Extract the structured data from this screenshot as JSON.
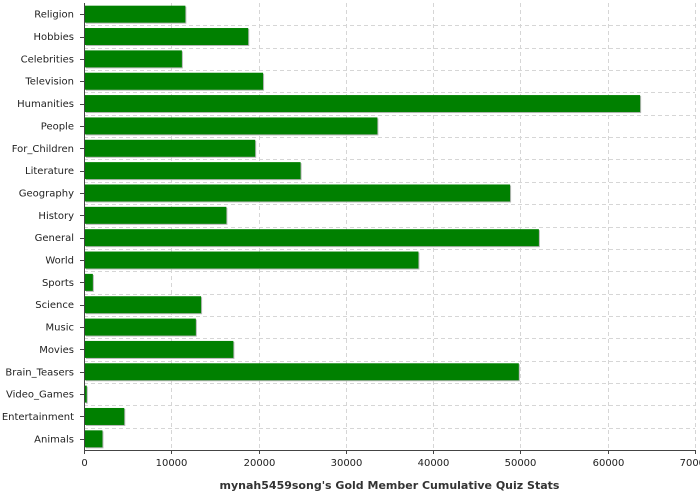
{
  "chart_data": {
    "type": "bar",
    "orientation": "horizontal",
    "title": "",
    "xlabel": "mynah5459song's Gold Member Cumulative Quiz Stats",
    "ylabel": "",
    "xlim": [
      0,
      70000
    ],
    "xticks": [
      0,
      10000,
      20000,
      30000,
      40000,
      50000,
      60000,
      70000
    ],
    "grid": true,
    "bar_color": "#008000",
    "categories": [
      "Religion",
      "Hobbies",
      "Celebrities",
      "Television",
      "Humanities",
      "People",
      "For_Children",
      "Literature",
      "Geography",
      "History",
      "General",
      "World",
      "Sports",
      "Science",
      "Music",
      "Movies",
      "Brain_Teasers",
      "Video_Games",
      "Entertainment",
      "Animals"
    ],
    "values": [
      11500,
      18700,
      11100,
      20400,
      63600,
      33500,
      19500,
      24700,
      48700,
      16200,
      52000,
      38200,
      900,
      13300,
      12700,
      17000,
      49700,
      200,
      4500,
      2000
    ]
  }
}
